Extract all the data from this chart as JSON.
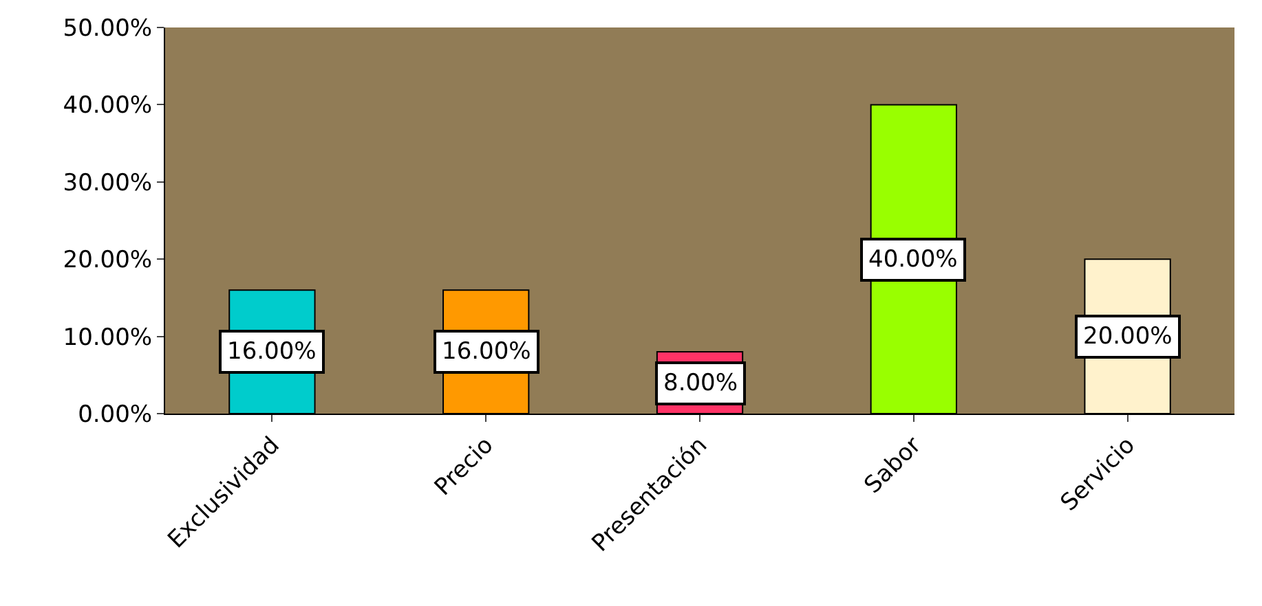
{
  "chart_data": {
    "type": "bar",
    "categories": [
      "Exclusividad",
      "Precio",
      "Presentación",
      "Sabor",
      "Servicio"
    ],
    "values": [
      16,
      16,
      8,
      40,
      20
    ],
    "colors": [
      "#00cccc",
      "#ff9900",
      "#ff3366",
      "#99ff00",
      "#fff2cc"
    ],
    "value_labels": [
      "16.00%",
      "16.00%",
      "8.00%",
      "40.00%",
      "20.00%"
    ],
    "ylim": [
      0,
      50
    ],
    "yticks": [
      {
        "value": 0,
        "label": "0.00%"
      },
      {
        "value": 10,
        "label": "10.00%"
      },
      {
        "value": 20,
        "label": "20.00%"
      },
      {
        "value": 30,
        "label": "30.00%"
      },
      {
        "value": 40,
        "label": "40.00%"
      },
      {
        "value": 50,
        "label": "50.00%"
      }
    ],
    "grid": false,
    "legend": false
  }
}
